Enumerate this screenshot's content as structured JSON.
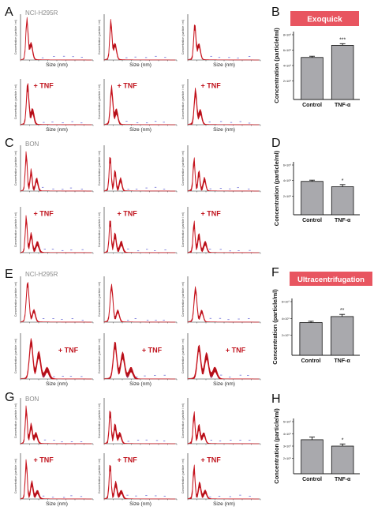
{
  "panel_letters": [
    "A",
    "B",
    "C",
    "D",
    "E",
    "F",
    "G",
    "H"
  ],
  "colors": {
    "trace": "#c8141e",
    "trace_fill": "#b0101a",
    "badge_bg": "#e85560",
    "bar_fill": "#a9a9ad",
    "blue_marks": "#5a5ad2",
    "axis": "#222222"
  },
  "sections": [
    {
      "letter": "A",
      "cell_label": "NCI-H295R",
      "treatment_label": "+ TNF",
      "size_label": "Size (nm)",
      "y_axis_label": "Concentration (particle / ml)"
    },
    {
      "letter": "C",
      "cell_label": "BON",
      "treatment_label": "+ TNF",
      "size_label": "Size (nm)",
      "y_axis_label": "Concentration (particle / ml)"
    },
    {
      "letter": "E",
      "cell_label": "NCI-H295R",
      "treatment_label": "+ TNF",
      "size_label": "Size (nm)",
      "y_axis_label": "Concentration (particle / ml)"
    },
    {
      "letter": "G",
      "cell_label": "BON",
      "treatment_label": "+ TNF",
      "size_label": "Size (nm)",
      "y_axis_label": "Concentration (particle / ml)"
    }
  ],
  "badges": [
    "Exoquick",
    "Ultracentrifugation"
  ],
  "chart_data": [
    {
      "panel": "B",
      "type": "bar",
      "method": "Exoquick",
      "categories": [
        "Control",
        "TNF-α"
      ],
      "values": [
        5.2,
        6.7
      ],
      "errors": [
        0.15,
        0.2
      ],
      "significance": [
        "",
        "***"
      ],
      "ylabel": "Concentration (particle/ml)",
      "ytick_labels": [
        "8×10⁸",
        "6×10⁸",
        "4×10⁸",
        "2×10⁸"
      ],
      "ylim": [
        0,
        8.4
      ]
    },
    {
      "panel": "D",
      "type": "bar",
      "categories": [
        "Control",
        "TNF-α"
      ],
      "values": [
        4.1,
        3.45
      ],
      "errors": [
        0.15,
        0.25
      ],
      "significance": [
        "",
        "*"
      ],
      "ylabel": "Concentration (particle/ml)",
      "ytick_labels": [
        "6×10⁸",
        "4×10⁸",
        "2×10⁸"
      ],
      "ylim": [
        0,
        6.5
      ]
    },
    {
      "panel": "F",
      "type": "bar",
      "method": "Ultracentrifugation",
      "categories": [
        "Control",
        "TNF-α"
      ],
      "values": [
        3.8,
        4.5
      ],
      "errors": [
        0.15,
        0.25
      ],
      "significance": [
        "",
        "**"
      ],
      "ylabel": "Concentration (particle/ml)",
      "ytick_labels": [
        "6×10⁹",
        "4×10⁹",
        "2×10⁹"
      ],
      "ylim": [
        0,
        6.6
      ]
    },
    {
      "panel": "H",
      "type": "bar",
      "categories": [
        "Control",
        "TNF-α"
      ],
      "values": [
        3.2,
        2.6
      ],
      "errors": [
        0.25,
        0.2
      ],
      "significance": [
        "",
        "*"
      ],
      "ylabel": "Concentration (particle/ml)",
      "ytick_labels": [
        "5×10⁹",
        "4×10⁹",
        "3×10⁹",
        "2×10⁹"
      ],
      "ylim": [
        0,
        5.2
      ]
    }
  ]
}
